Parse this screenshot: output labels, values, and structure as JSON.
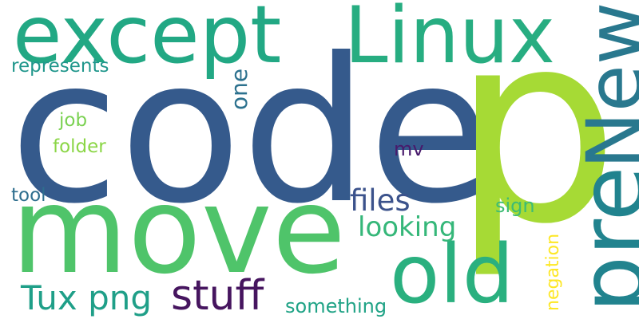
{
  "words": {
    "code": {
      "text": "code",
      "color": "#355a8c"
    },
    "p": {
      "text": "p",
      "color": "#a6da35"
    },
    "move": {
      "text": "move",
      "color": "#4fc46a"
    },
    "except": {
      "text": "except",
      "color": "#22a884"
    },
    "linux": {
      "text": "Linux",
      "color": "#27ad81"
    },
    "new": {
      "text": "New",
      "color": "#29788e"
    },
    "pre": {
      "text": "pre",
      "color": "#21838e"
    },
    "old": {
      "text": "old",
      "color": "#2ab07f"
    },
    "stuff": {
      "text": "stuff",
      "color": "#46155f"
    },
    "tux_png": {
      "text": "Tux png",
      "color": "#1f9f88"
    },
    "files": {
      "text": "files",
      "color": "#3b528b"
    },
    "looking": {
      "text": "looking",
      "color": "#35b779"
    },
    "something": {
      "text": "something",
      "color": "#20a386"
    },
    "negation": {
      "text": "negation",
      "color": "#fde725"
    },
    "sign": {
      "text": "sign",
      "color": "#3dbc74"
    },
    "mv": {
      "text": "mv",
      "color": "#481a6c"
    },
    "one": {
      "text": "one",
      "color": "#2c718e"
    },
    "represents": {
      "text": "represents",
      "color": "#1f968b"
    },
    "job": {
      "text": "job",
      "color": "#7ad151"
    },
    "folder": {
      "text": "folder",
      "color": "#8bd646"
    },
    "tool": {
      "text": "tool",
      "color": "#2e6e8e"
    }
  }
}
